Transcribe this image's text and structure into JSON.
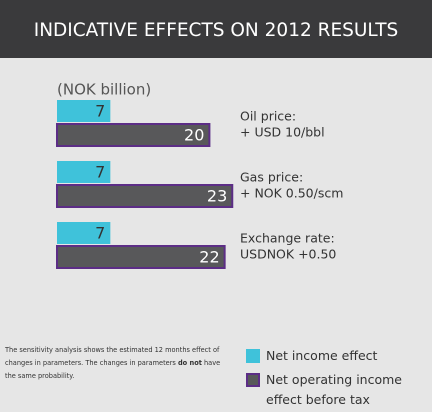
{
  "chart_data": {
    "type": "hbar",
    "title": "INDICATIVE EFFECTS ON 2012 RESULTS",
    "unit_label": "(NOK billion)",
    "categories": [
      [
        "Oil price:",
        "+ USD 10/bbl"
      ],
      [
        "Gas price:",
        "+ NOK 0.50/scm"
      ],
      [
        "Exchange rate:",
        "USDNOK +0.50"
      ]
    ],
    "series": [
      {
        "name": "Net income effect",
        "color": "#3fc2da",
        "values": [
          7,
          7,
          7
        ]
      },
      {
        "name": "Net operating income effect before tax",
        "color": "#58585a",
        "border": "#5c2d86",
        "values": [
          20,
          23,
          22
        ]
      }
    ],
    "note": [
      "The sensitivity analysis shows the estimated 12 months effect of changes in parameters. The changes in parameters ",
      "do not",
      " have the same probability."
    ]
  }
}
